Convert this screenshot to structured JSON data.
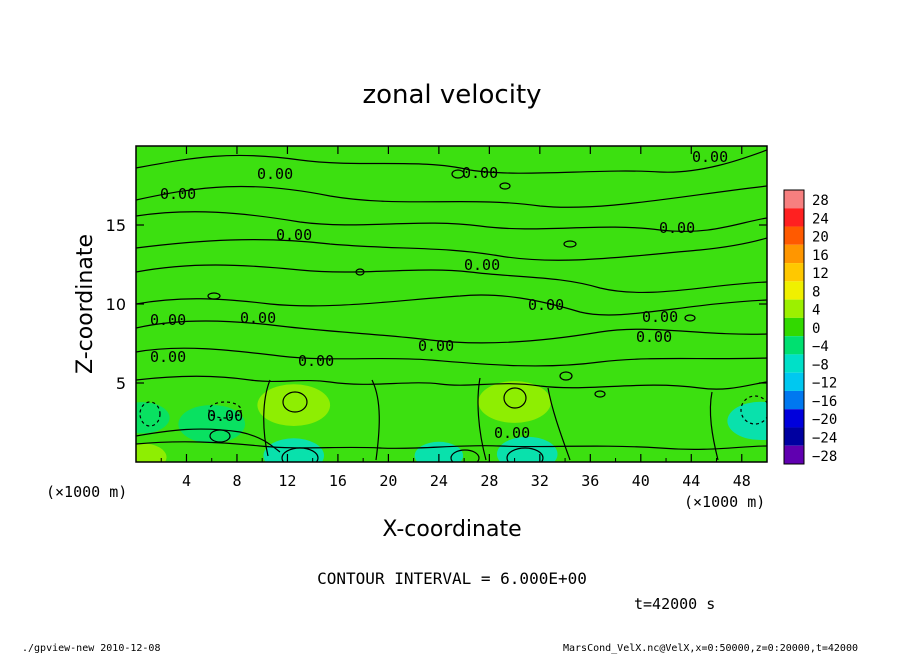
{
  "chart_data": {
    "type": "heatmap",
    "title": "zonal velocity",
    "xlabel": "X-coordinate",
    "ylabel": "Z-coordinate",
    "x_unit": "(×1000 m)",
    "z_unit": "(×1000 m)",
    "x_range": [
      0,
      50
    ],
    "z_range": [
      0,
      20
    ],
    "x_ticks": [
      "4",
      "8",
      "12",
      "16",
      "20",
      "24",
      "28",
      "32",
      "36",
      "40",
      "44",
      "48"
    ],
    "z_ticks": [
      "5",
      "10",
      "15"
    ],
    "colorbar_labels": [
      "28",
      "24",
      "20",
      "16",
      "12",
      "8",
      "4",
      "0",
      "−4",
      "−8",
      "−12",
      "−16",
      "−20",
      "−24",
      "−28"
    ],
    "colorbar_colors": [
      "#f77f7f",
      "#ff2020",
      "#ff5a00",
      "#ff9600",
      "#ffc800",
      "#f0f000",
      "#9cf000",
      "#32d900",
      "#00e070",
      "#00e0c8",
      "#00c8f0",
      "#0078f0",
      "#0000dc",
      "#0000a0",
      "#6000b0"
    ],
    "contour_label": "0.00",
    "contour_interval_text": "CONTOUR INTERVAL = 6.000E+00",
    "time_text": "t=42000 s",
    "field_features": [
      {
        "x": 6,
        "z": 2.4,
        "value": -4,
        "size": 2.2
      },
      {
        "x": 12.5,
        "z": 0.4,
        "value": -9,
        "size": 2.0
      },
      {
        "x": 24,
        "z": 0.4,
        "value": -6,
        "size": 1.6
      },
      {
        "x": 31,
        "z": 0.5,
        "value": -9,
        "size": 2.0
      },
      {
        "x": 49.5,
        "z": 2.6,
        "value": -6,
        "size": 2.2
      },
      {
        "x": 0.5,
        "z": 2.8,
        "value": -5,
        "size": 1.8
      },
      {
        "x": 12.5,
        "z": 3.6,
        "value": 4,
        "size": 2.4
      },
      {
        "x": 30,
        "z": 3.8,
        "value": 4,
        "size": 2.4
      },
      {
        "x": 0.5,
        "z": 0.3,
        "value": 3,
        "size": 1.6
      }
    ]
  },
  "footer": {
    "left": "./gpview-new  2010-12-08",
    "right": "MarsCond_VelX.nc@VelX,x=0:50000,z=0:20000,t=42000"
  }
}
